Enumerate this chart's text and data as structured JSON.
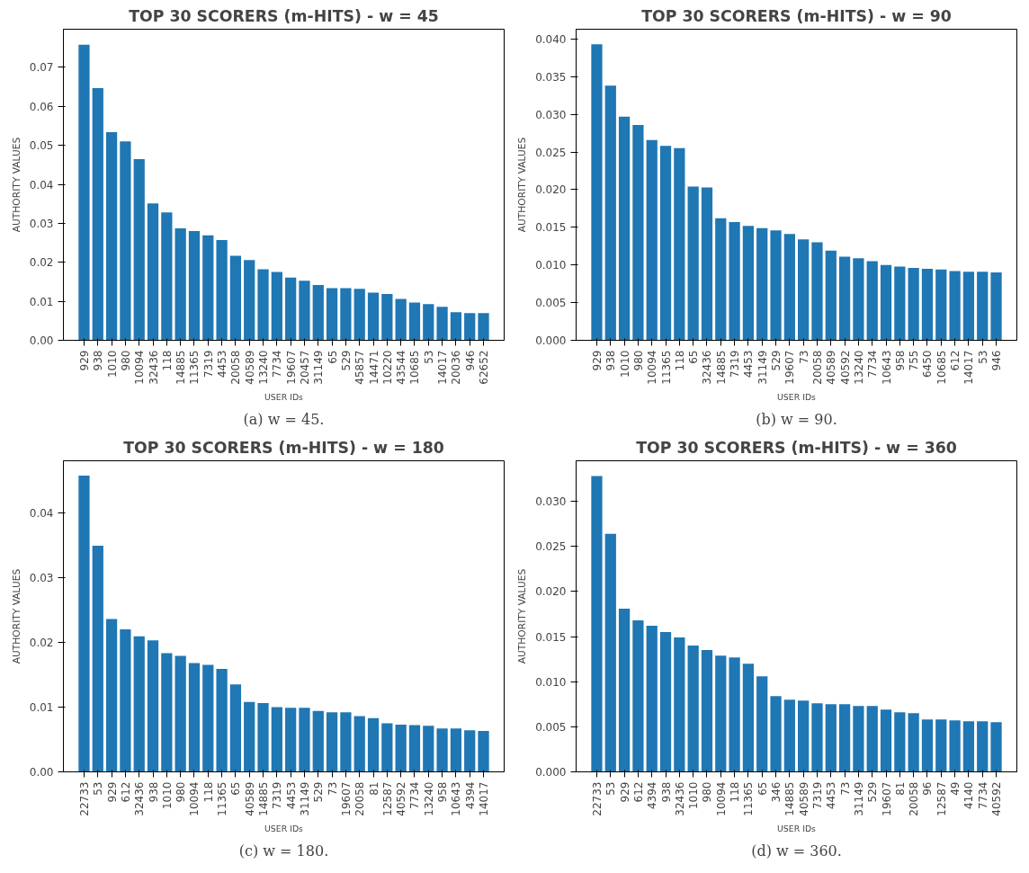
{
  "chart_data": [
    {
      "type": "bar",
      "title": "TOP 30 SCORERS (m-HITS) - w = 45",
      "xlabel": "USER IDs",
      "ylabel": "AUTHORITY VALUES",
      "annotations": [
        "(a) w = 45."
      ],
      "color": "#1f77b4",
      "ylim": [
        0,
        0.0798
      ],
      "yticks": [
        {
          "value": 0,
          "label": "0.00"
        },
        0.01,
        0.02,
        0.03,
        0.04,
        0.05,
        0.06,
        0.07
      ],
      "grid": false,
      "categories": [
        "929",
        "938",
        "1010",
        "980",
        "10094",
        "32436",
        "118",
        "14885",
        "11365",
        "7319",
        "4453",
        "20058",
        "40589",
        "13240",
        "7734",
        "19607",
        "20457",
        "31149",
        "65",
        "529",
        "45857",
        "14471",
        "10220",
        "43544",
        "10685",
        "53",
        "14017",
        "20036",
        "946",
        "62652"
      ],
      "values": [
        0.0758,
        0.0647,
        0.0534,
        0.051,
        0.0465,
        0.0351,
        0.0328,
        0.0287,
        0.028,
        0.0269,
        0.0257,
        0.0217,
        0.0206,
        0.0182,
        0.0175,
        0.0161,
        0.0153,
        0.0142,
        0.0134,
        0.0134,
        0.0132,
        0.0122,
        0.0119,
        0.0106,
        0.0097,
        0.0093,
        0.0086,
        0.0072,
        0.007,
        0.007
      ]
    },
    {
      "type": "bar",
      "title": "TOP 30 SCORERS (m-HITS) - w = 90",
      "xlabel": "USER IDs",
      "ylabel": "AUTHORITY VALUES",
      "annotations": [
        "(b) w = 90."
      ],
      "color": "#1f77b4",
      "ylim": [
        0,
        0.0413
      ],
      "yticks": [
        {
          "value": 0,
          "label": "0.000"
        },
        {
          "value": 0.005,
          "label": "0.005"
        },
        {
          "value": 0.01,
          "label": "0.010"
        },
        {
          "value": 0.015,
          "label": "0.015"
        },
        {
          "value": 0.02,
          "label": "0.020"
        },
        {
          "value": 0.025,
          "label": "0.025"
        },
        {
          "value": 0.03,
          "label": "0.030"
        },
        {
          "value": 0.035,
          "label": "0.035"
        },
        {
          "value": 0.04,
          "label": "0.040"
        }
      ],
      "grid": false,
      "categories": [
        "929",
        "938",
        "1010",
        "980",
        "10094",
        "11365",
        "118",
        "65",
        "32436",
        "14885",
        "7319",
        "4453",
        "31149",
        "529",
        "19607",
        "73",
        "20058",
        "40589",
        "40592",
        "13240",
        "7734",
        "10643",
        "958",
        "755",
        "6450",
        "10685",
        "612",
        "14017",
        "53",
        "946"
      ],
      "values": [
        0.0393,
        0.0338,
        0.0297,
        0.0286,
        0.0266,
        0.0258,
        0.0255,
        0.0204,
        0.0203,
        0.0162,
        0.0157,
        0.0152,
        0.0149,
        0.0146,
        0.0141,
        0.0134,
        0.013,
        0.0119,
        0.0111,
        0.0109,
        0.0105,
        0.01,
        0.0098,
        0.0096,
        0.0095,
        0.0094,
        0.0092,
        0.0091,
        0.0091,
        0.009
      ]
    },
    {
      "type": "bar",
      "title": "TOP 30 SCORERS (m-HITS) - w = 180",
      "xlabel": "USER IDs",
      "ylabel": "AUTHORITY VALUES",
      "annotations": [
        "(c) w = 180."
      ],
      "color": "#1f77b4",
      "ylim": [
        0,
        0.048
      ],
      "yticks": [
        {
          "value": 0,
          "label": "0.00"
        },
        0.01,
        0.02,
        0.03,
        0.04
      ],
      "grid": false,
      "categories": [
        "22733",
        "53",
        "929",
        "612",
        "32436",
        "938",
        "1010",
        "980",
        "10094",
        "118",
        "11365",
        "65",
        "40589",
        "14885",
        "7319",
        "4453",
        "31149",
        "529",
        "73",
        "19607",
        "20058",
        "81",
        "12587",
        "40592",
        "7734",
        "13240",
        "958",
        "10643",
        "4394",
        "14017"
      ],
      "values": [
        0.0457,
        0.0349,
        0.0236,
        0.022,
        0.0209,
        0.0203,
        0.0183,
        0.0179,
        0.0168,
        0.0165,
        0.0159,
        0.0135,
        0.0108,
        0.0106,
        0.01,
        0.0099,
        0.0099,
        0.0094,
        0.0092,
        0.0092,
        0.0086,
        0.0083,
        0.0075,
        0.0073,
        0.0072,
        0.0071,
        0.0067,
        0.0067,
        0.0064,
        0.0063
      ]
    },
    {
      "type": "bar",
      "title": "TOP 30 SCORERS (m-HITS) - w = 360",
      "xlabel": "USER IDs",
      "ylabel": "AUTHORITY VALUES",
      "annotations": [
        "(d) w = 360."
      ],
      "color": "#1f77b4",
      "ylim": [
        0,
        0.0345
      ],
      "yticks": [
        {
          "value": 0,
          "label": "0.000"
        },
        {
          "value": 0.005,
          "label": "0.005"
        },
        {
          "value": 0.01,
          "label": "0.010"
        },
        {
          "value": 0.015,
          "label": "0.015"
        },
        {
          "value": 0.02,
          "label": "0.020"
        },
        {
          "value": 0.025,
          "label": "0.025"
        },
        {
          "value": 0.03,
          "label": "0.030"
        }
      ],
      "grid": false,
      "categories": [
        "22733",
        "53",
        "929",
        "612",
        "4394",
        "938",
        "32436",
        "1010",
        "980",
        "10094",
        "118",
        "11365",
        "65",
        "346",
        "14885",
        "40589",
        "7319",
        "4453",
        "73",
        "31149",
        "529",
        "19607",
        "81",
        "20058",
        "96",
        "12587",
        "49",
        "4140",
        "7734",
        "40592"
      ],
      "values": [
        0.0328,
        0.0264,
        0.0181,
        0.0168,
        0.0162,
        0.0155,
        0.0149,
        0.014,
        0.0135,
        0.0129,
        0.0127,
        0.012,
        0.0106,
        0.0084,
        0.008,
        0.0079,
        0.0076,
        0.0075,
        0.0075,
        0.0073,
        0.0073,
        0.0069,
        0.0066,
        0.0065,
        0.0058,
        0.0058,
        0.0057,
        0.0056,
        0.0056,
        0.0055
      ]
    }
  ]
}
